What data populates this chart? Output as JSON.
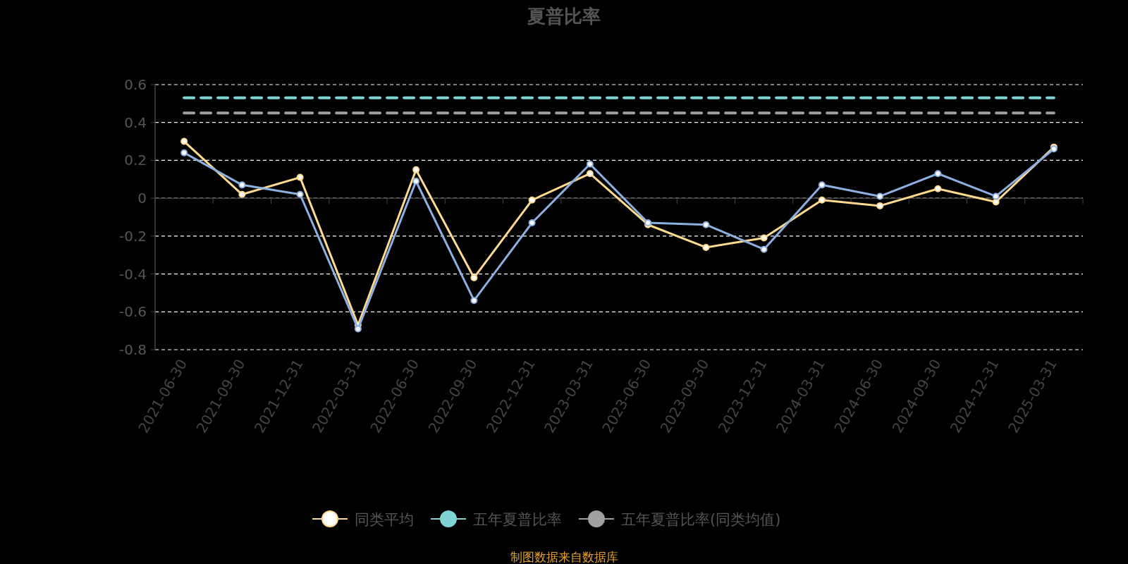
{
  "chart_data": {
    "type": "line",
    "title": "夏普比率",
    "categories": [
      "2021-06-30",
      "2021-09-30",
      "2021-12-31",
      "2022-03-31",
      "2022-06-30",
      "2022-09-30",
      "2022-12-31",
      "2023-03-31",
      "2023-06-30",
      "2023-09-30",
      "2023-12-31",
      "2024-03-31",
      "2024-06-30",
      "2024-09-30",
      "2024-12-31",
      "2025-03-31"
    ],
    "series": [
      {
        "color": "#8cb0e0",
        "values": [
          0.24,
          0.07,
          0.02,
          -0.69,
          0.09,
          -0.54,
          -0.13,
          0.18,
          -0.13,
          -0.14,
          -0.27,
          0.07,
          0.01,
          0.13,
          0.01,
          0.26
        ]
      },
      {
        "name": "同类平均",
        "color": "#ffd98e",
        "values": [
          0.3,
          0.02,
          0.11,
          -0.67,
          0.15,
          -0.42,
          -0.01,
          0.13,
          -0.14,
          -0.26,
          -0.21,
          -0.01,
          -0.04,
          0.05,
          -0.02,
          0.27
        ]
      },
      {
        "name": "五年夏普比率",
        "color": "#7fd3d4",
        "line_style": "dashed",
        "marker": "none",
        "values": [
          0.53,
          0.53,
          0.53,
          0.53,
          0.53,
          0.53,
          0.53,
          0.53,
          0.53,
          0.53,
          0.53,
          0.53,
          0.53,
          0.53,
          0.53,
          0.53
        ]
      },
      {
        "name": "五年夏普比率(同类均值)",
        "color": "#a0a0a0",
        "line_style": "dashed",
        "marker": "none",
        "values": [
          0.45,
          0.45,
          0.45,
          0.45,
          0.45,
          0.45,
          0.45,
          0.45,
          0.45,
          0.45,
          0.45,
          0.45,
          0.45,
          0.45,
          0.45,
          0.45
        ]
      }
    ],
    "ylim": [
      -0.8,
      0.6
    ],
    "yticks": [
      -0.8,
      -0.6,
      -0.4,
      -0.2,
      0,
      0.2,
      0.4,
      0.6
    ],
    "grid": "y",
    "legend": "bottom",
    "marker": "circle",
    "line_style": "solid",
    "annotations": [
      "制图数据来自数据库"
    ]
  }
}
